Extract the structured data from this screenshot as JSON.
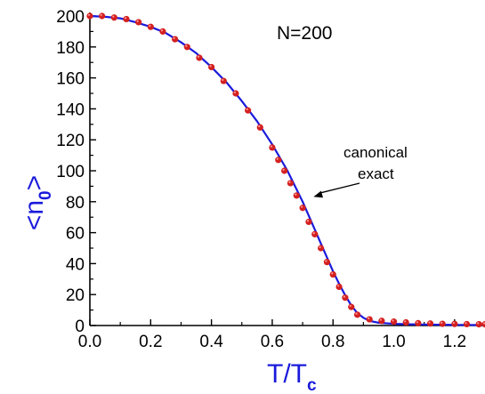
{
  "chart_data": {
    "type": "scatter",
    "inset_label": "N=200",
    "annotation": [
      "canonical",
      "exact"
    ],
    "annotation_point": [
      0.73,
      82
    ],
    "xlabel": {
      "main": "T/T",
      "sub": "c"
    },
    "ylabel": {
      "open": "<n",
      "sub": "0",
      "close": ">"
    },
    "xlim": [
      0,
      1.3
    ],
    "ylim": [
      0,
      200
    ],
    "x_ticks": [
      "0.0",
      "0.2",
      "0.4",
      "0.6",
      "0.8",
      "1.0",
      "1.2"
    ],
    "y_ticks": [
      "0",
      "20",
      "40",
      "60",
      "80",
      "100",
      "120",
      "140",
      "160",
      "180",
      "200"
    ],
    "colors": {
      "points": "#d42020",
      "line": "#1a1adb",
      "axis_title": "#1a1adb"
    },
    "series": [
      {
        "marker": "circle",
        "x": [
          0.0,
          0.04,
          0.08,
          0.12,
          0.16,
          0.2,
          0.24,
          0.28,
          0.32,
          0.36,
          0.4,
          0.44,
          0.48,
          0.52,
          0.56,
          0.6,
          0.62,
          0.64,
          0.66,
          0.68,
          0.7,
          0.72,
          0.74,
          0.76,
          0.78,
          0.8,
          0.82,
          0.84,
          0.86,
          0.88,
          0.92,
          0.96,
          1.0,
          1.04,
          1.08,
          1.12,
          1.16,
          1.2,
          1.24,
          1.28,
          1.3
        ],
        "y": [
          200,
          200,
          199,
          198,
          196,
          193,
          190,
          185,
          180,
          173,
          167,
          158,
          150,
          139,
          128,
          115,
          107,
          100,
          92,
          84,
          76,
          67,
          59,
          50,
          41,
          33,
          25,
          18,
          12,
          7,
          4,
          3,
          2.5,
          2,
          1.5,
          1.3,
          1.1,
          1,
          0.9,
          0.8,
          0.8
        ]
      },
      {
        "marker": "line",
        "x": [
          0.0,
          0.05,
          0.1,
          0.15,
          0.2,
          0.25,
          0.3,
          0.35,
          0.4,
          0.45,
          0.5,
          0.55,
          0.6,
          0.65,
          0.7,
          0.72,
          0.74,
          0.76,
          0.78,
          0.8,
          0.82,
          0.84,
          0.86,
          0.88,
          0.9,
          0.92,
          0.95,
          1.0,
          1.05,
          1.1,
          1.2,
          1.3
        ],
        "y": [
          200,
          199.5,
          198.5,
          196,
          193,
          189,
          183,
          176,
          167,
          157,
          145,
          132,
          117,
          100,
          80,
          71,
          62,
          53,
          44,
          35,
          27,
          19.5,
          13,
          8,
          5,
          3,
          1.8,
          1.1,
          0.8,
          0.6,
          0.4,
          0.3
        ]
      }
    ]
  }
}
